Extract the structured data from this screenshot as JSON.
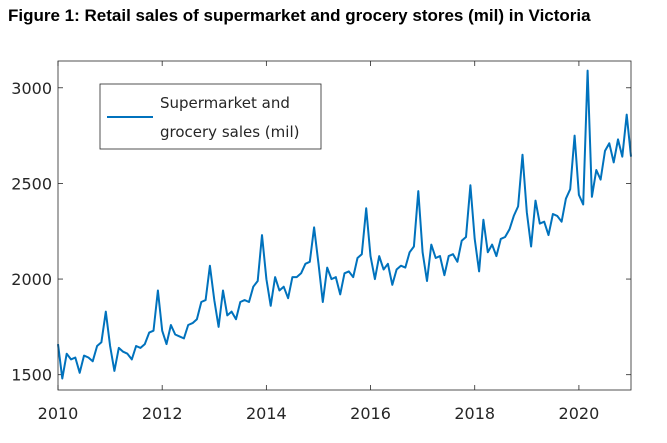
{
  "title": "Figure 1: Retail sales of supermarket and grocery stores (mil) in Victoria",
  "chart_data": {
    "type": "line",
    "title": "Figure 1: Retail sales of supermarket and grocery stores (mil) in Victoria",
    "xlabel": "",
    "ylabel": "",
    "xlim": [
      2010,
      2021
    ],
    "ylim": [
      1420,
      3140
    ],
    "x_ticks": [
      2010,
      2012,
      2014,
      2016,
      2018,
      2020
    ],
    "y_ticks": [
      1500,
      2000,
      2500,
      3000
    ],
    "grid": false,
    "legend_position": "top-left",
    "line_color": "#0072BD",
    "series": [
      {
        "name": "Supermarket and grocery sales (mil)",
        "x": [
          2010.0,
          2010.083,
          2010.167,
          2010.25,
          2010.333,
          2010.417,
          2010.5,
          2010.583,
          2010.667,
          2010.75,
          2010.833,
          2010.917,
          2011.0,
          2011.083,
          2011.167,
          2011.25,
          2011.333,
          2011.417,
          2011.5,
          2011.583,
          2011.667,
          2011.75,
          2011.833,
          2011.917,
          2012.0,
          2012.083,
          2012.167,
          2012.25,
          2012.333,
          2012.417,
          2012.5,
          2012.583,
          2012.667,
          2012.75,
          2012.833,
          2012.917,
          2013.0,
          2013.083,
          2013.167,
          2013.25,
          2013.333,
          2013.417,
          2013.5,
          2013.583,
          2013.667,
          2013.75,
          2013.833,
          2013.917,
          2014.0,
          2014.083,
          2014.167,
          2014.25,
          2014.333,
          2014.417,
          2014.5,
          2014.583,
          2014.667,
          2014.75,
          2014.833,
          2014.917,
          2015.0,
          2015.083,
          2015.167,
          2015.25,
          2015.333,
          2015.417,
          2015.5,
          2015.583,
          2015.667,
          2015.75,
          2015.833,
          2015.917,
          2016.0,
          2016.083,
          2016.167,
          2016.25,
          2016.333,
          2016.417,
          2016.5,
          2016.583,
          2016.667,
          2016.75,
          2016.833,
          2016.917,
          2017.0,
          2017.083,
          2017.167,
          2017.25,
          2017.333,
          2017.417,
          2017.5,
          2017.583,
          2017.667,
          2017.75,
          2017.833,
          2017.917,
          2018.0,
          2018.083,
          2018.167,
          2018.25,
          2018.333,
          2018.417,
          2018.5,
          2018.583,
          2018.667,
          2018.75,
          2018.833,
          2018.917,
          2019.0,
          2019.083,
          2019.167,
          2019.25,
          2019.333,
          2019.417,
          2019.5,
          2019.583,
          2019.667,
          2019.75,
          2019.833,
          2019.917,
          2020.0,
          2020.083,
          2020.167,
          2020.25,
          2020.333,
          2020.417,
          2020.5,
          2020.583,
          2020.667,
          2020.75,
          2020.833,
          2020.917,
          2021.0
        ],
        "values": [
          1660,
          1480,
          1610,
          1580,
          1590,
          1510,
          1600,
          1590,
          1570,
          1650,
          1670,
          1830,
          1650,
          1520,
          1640,
          1620,
          1610,
          1580,
          1650,
          1640,
          1660,
          1720,
          1730,
          1940,
          1730,
          1660,
          1760,
          1710,
          1700,
          1690,
          1760,
          1770,
          1790,
          1880,
          1890,
          2070,
          1890,
          1750,
          1940,
          1810,
          1830,
          1790,
          1880,
          1890,
          1880,
          1960,
          1990,
          2230,
          2000,
          1860,
          2010,
          1940,
          1960,
          1900,
          2010,
          2010,
          2030,
          2080,
          2090,
          2270,
          2080,
          1880,
          2060,
          2000,
          2010,
          1920,
          2030,
          2040,
          2010,
          2110,
          2130,
          2370,
          2120,
          2000,
          2120,
          2050,
          2080,
          1970,
          2050,
          2070,
          2060,
          2140,
          2170,
          2460,
          2140,
          1990,
          2180,
          2110,
          2120,
          2020,
          2120,
          2130,
          2090,
          2200,
          2220,
          2490,
          2210,
          2040,
          2310,
          2140,
          2180,
          2120,
          2210,
          2220,
          2260,
          2330,
          2380,
          2650,
          2350,
          2170,
          2410,
          2290,
          2300,
          2230,
          2340,
          2330,
          2300,
          2420,
          2470,
          2750,
          2440,
          2390,
          3090,
          2430,
          2570,
          2520,
          2670,
          2710,
          2610,
          2730,
          2640,
          2860,
          2640
        ]
      }
    ]
  }
}
